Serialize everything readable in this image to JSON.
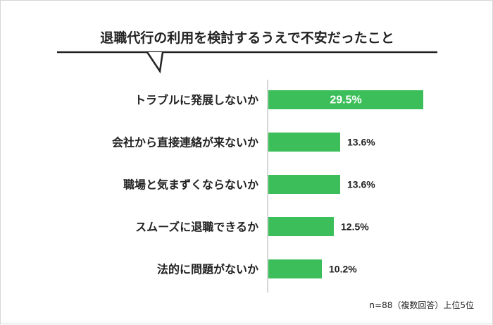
{
  "chart_data": {
    "type": "bar",
    "orientation": "horizontal",
    "title": "退職代行の利用を検討するうえで不安だったこと",
    "categories": [
      "トラブルに発展しないか",
      "会社から直接連絡が来ないか",
      "職場と気まずくならないか",
      "スムーズに退職できるか",
      "法的に問題がないか"
    ],
    "values": [
      29.5,
      13.6,
      13.6,
      12.5,
      10.2
    ],
    "value_labels": [
      "29.5%",
      "13.6%",
      "13.6%",
      "12.5%",
      "10.2%"
    ],
    "xlim": [
      0,
      30
    ],
    "grid": false,
    "legend": "none",
    "note": "n=88（複数回答）上位5位",
    "colors": {
      "bar": "#3cbf5a",
      "axis": "#c8c8c8",
      "text": "#222222"
    }
  }
}
